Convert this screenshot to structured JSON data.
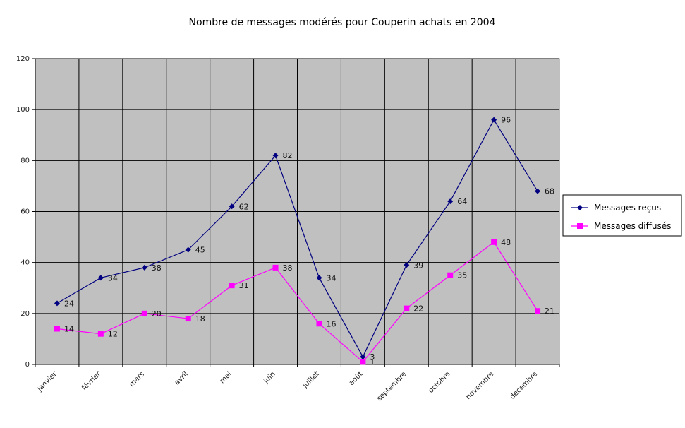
{
  "chart_data": {
    "type": "line",
    "title": "Nombre de messages modérés pour Couperin achats en 2004",
    "categories": [
      "janvier",
      "février",
      "mars",
      "avril",
      "mai",
      "juin",
      "juillet",
      "août",
      "septembre",
      "octobre",
      "novembre",
      "décembre"
    ],
    "series": [
      {
        "name": "Messages reçus",
        "color": "#000080",
        "marker": "diamond",
        "values": [
          24,
          34,
          38,
          45,
          62,
          82,
          34,
          3,
          39,
          64,
          96,
          68
        ]
      },
      {
        "name": "Messages diffusés",
        "color": "#ff00ff",
        "marker": "square",
        "values": [
          14,
          12,
          20,
          18,
          31,
          38,
          16,
          1,
          22,
          35,
          48,
          21
        ]
      }
    ],
    "ylim": [
      0,
      120
    ],
    "yticks": [
      0,
      20,
      40,
      60,
      80,
      100,
      120
    ],
    "grid": true,
    "plot_background": "#c0c0c0",
    "legend_position": "right"
  }
}
